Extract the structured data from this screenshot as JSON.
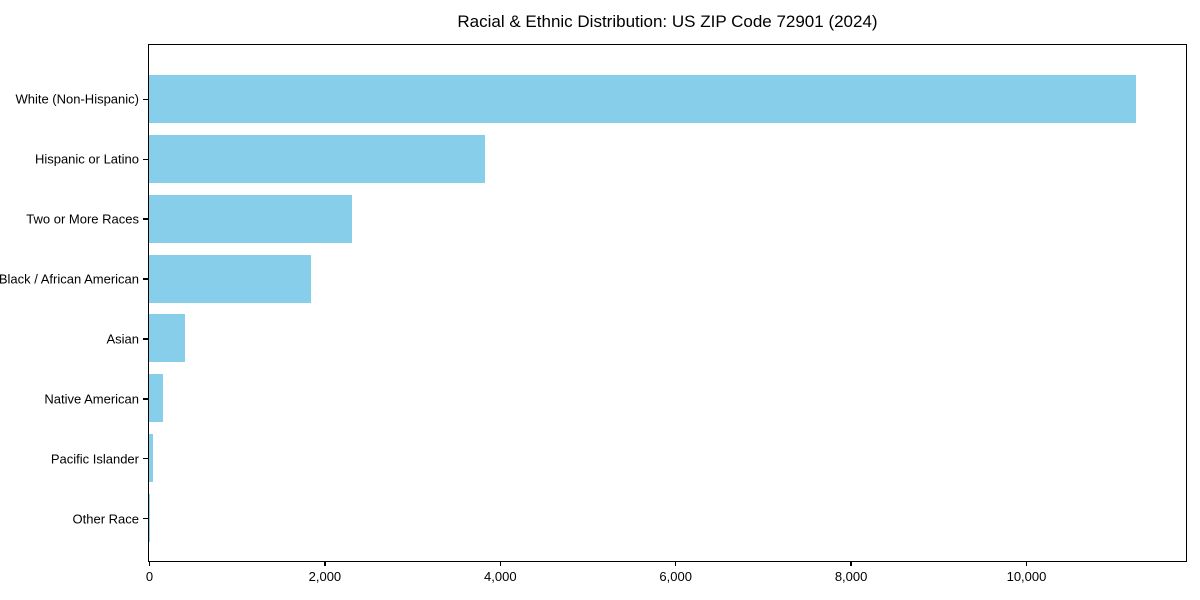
{
  "chart_data": {
    "type": "bar",
    "orientation": "horizontal",
    "title": "Racial & Ethnic Distribution: US ZIP Code 72901 (2024)",
    "categories": [
      "White (Non-Hispanic)",
      "Hispanic or Latino",
      "Two or More Races",
      "Black / African American",
      "Asian",
      "Native American",
      "Pacific Islander",
      "Other Race"
    ],
    "values": [
      11250,
      3830,
      2310,
      1845,
      415,
      160,
      40,
      15
    ],
    "bar_color": "#87CEEB",
    "xlim": [
      0,
      11813
    ],
    "xticks": [
      0,
      2000,
      4000,
      6000,
      8000,
      10000
    ],
    "xtick_labels": [
      "0",
      "2,000",
      "4,000",
      "6,000",
      "8,000",
      "10,000"
    ],
    "xlabel": "",
    "ylabel": "",
    "grid": false,
    "legend_position": "none"
  }
}
